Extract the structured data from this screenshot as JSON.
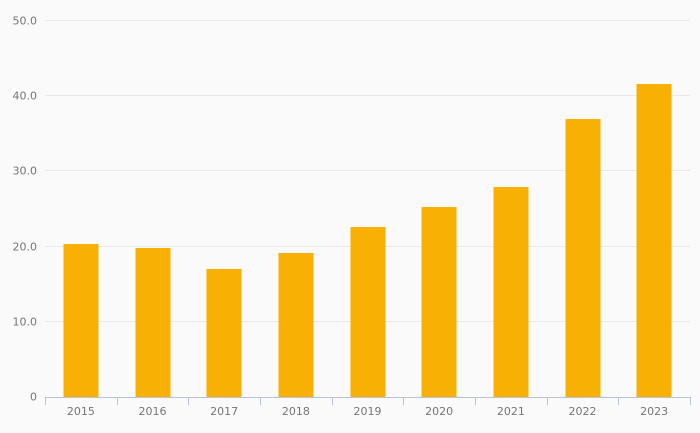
{
  "chart_data": {
    "type": "bar",
    "title": "",
    "xlabel": "",
    "ylabel": "",
    "categories": [
      "2015",
      "2016",
      "2017",
      "2018",
      "2019",
      "2020",
      "2021",
      "2022",
      "2023"
    ],
    "values": [
      20.3,
      19.8,
      17.0,
      19.1,
      22.6,
      25.3,
      27.9,
      37.0,
      41.6
    ],
    "ylim": [
      0,
      50
    ],
    "y_ticks": [
      0,
      10,
      20,
      30,
      40,
      50
    ],
    "y_tick_labels": [
      "0",
      "10.0",
      "20.0",
      "30.0",
      "40.0",
      "50.0"
    ],
    "grid": true,
    "legend": "none",
    "bar_color": "#f9b005",
    "background_color": "#fafafa",
    "gridline_color": "#e9e9e9",
    "axis_line_color": "#b7c3dc",
    "label_color": "#757575"
  }
}
